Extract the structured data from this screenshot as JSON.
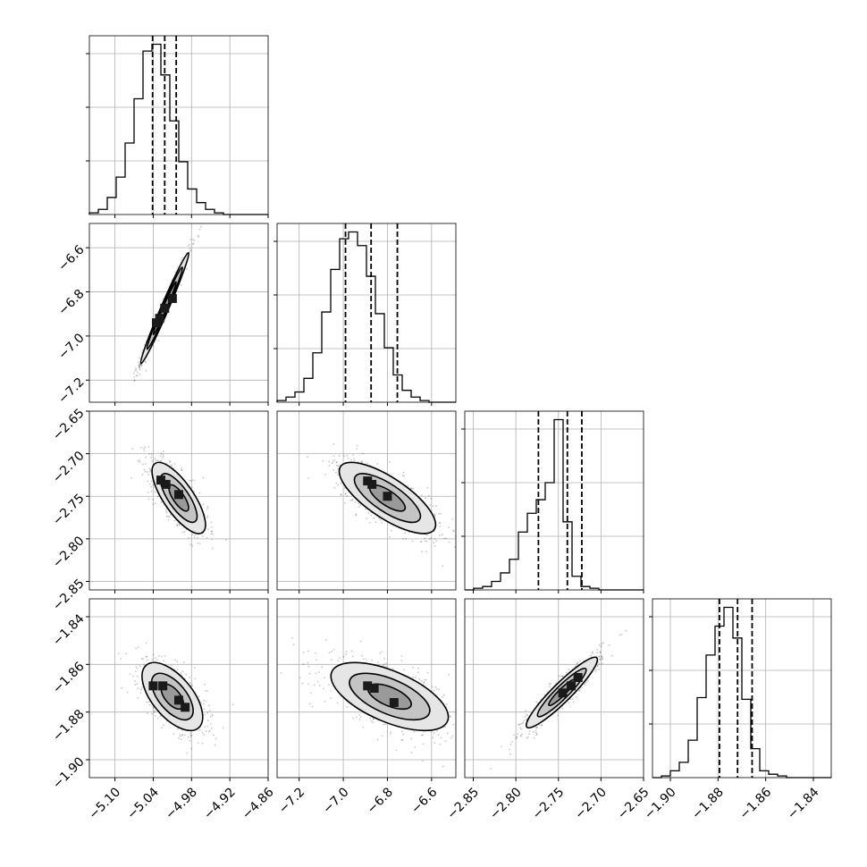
{
  "chart_data": {
    "type": "corner",
    "title": "",
    "parameters": [
      {
        "label": "",
        "range": [
          -5.14,
          -4.86
        ],
        "ticks": [
          {
            "v": -5.1,
            "t": "−5.10"
          },
          {
            "v": -5.04,
            "t": "−5.04"
          },
          {
            "v": -4.98,
            "t": "−4.98"
          },
          {
            "v": -4.92,
            "t": "−4.92"
          },
          {
            "v": -4.86,
            "t": "−4.86"
          }
        ],
        "quantiles": [
          -5.041,
          -5.022,
          -5.004
        ],
        "histogram": {
          "start": -5.14,
          "bin_width": 0.014,
          "counts": [
            1,
            3,
            10,
            22,
            42,
            68,
            96,
            100,
            82,
            55,
            31,
            15,
            7,
            3,
            1,
            0,
            0,
            0,
            0,
            0
          ]
        }
      },
      {
        "label": "",
        "range": [
          -7.3,
          -6.49
        ],
        "ticks": [
          {
            "v": -7.2,
            "t": "−7.2"
          },
          {
            "v": -7.0,
            "t": "−7.0"
          },
          {
            "v": -6.8,
            "t": "−6.8"
          },
          {
            "v": -6.6,
            "t": "−6.6"
          }
        ],
        "quantiles": [
          -6.99,
          -6.874,
          -6.755
        ],
        "histogram": {
          "start": -7.3,
          "bin_width": 0.0405,
          "counts": [
            1,
            3,
            6,
            14,
            29,
            53,
            78,
            96,
            100,
            92,
            74,
            52,
            32,
            16,
            7,
            3,
            1,
            0,
            0,
            0
          ]
        }
      },
      {
        "label": "",
        "range": [
          -2.86,
          -2.65
        ],
        "ticks": [
          {
            "v": -2.85,
            "t": "−2.85"
          },
          {
            "v": -2.8,
            "t": "−2.80"
          },
          {
            "v": -2.75,
            "t": "−2.75"
          },
          {
            "v": -2.7,
            "t": "−2.70"
          },
          {
            "v": -2.65,
            "t": "−2.65"
          }
        ],
        "quantiles": [
          -2.7735,
          -2.7395,
          -2.7225
        ],
        "histogram": {
          "start": -2.86,
          "bin_width": 0.0105,
          "counts": [
            0,
            1,
            2,
            5,
            10,
            18,
            34,
            45,
            53,
            63,
            100,
            40,
            8,
            2,
            1,
            0,
            0,
            0,
            0,
            0
          ]
        }
      },
      {
        "label": "",
        "range": [
          -1.9075,
          -1.8325
        ],
        "ticks": [
          {
            "v": -1.9,
            "t": "−1.90"
          },
          {
            "v": -1.88,
            "t": "−1.88"
          },
          {
            "v": -1.86,
            "t": "−1.86"
          },
          {
            "v": -1.84,
            "t": "−1.84"
          }
        ],
        "quantiles": [
          -1.8794,
          -1.8718,
          -1.8657
        ],
        "histogram": {
          "start": -1.9075,
          "bin_width": 0.00375,
          "counts": [
            0,
            1,
            4,
            9,
            22,
            47,
            72,
            89,
            100,
            82,
            46,
            17,
            4,
            2,
            1,
            0,
            0,
            0,
            0,
            0
          ]
        }
      }
    ],
    "pairs": [
      {
        "row": 1,
        "col": 0,
        "center": [
          -5.022,
          -6.874
        ],
        "sigma": [
          0.018,
          0.12
        ],
        "rho": 0.985,
        "level_scales": [
          1.0,
          1.55,
          2.1
        ],
        "hotspots": [
          [
            -5.03,
            -6.92
          ],
          [
            -5.022,
            -6.874
          ],
          [
            -5.01,
            -6.83
          ],
          [
            -5.035,
            -6.94
          ]
        ]
      },
      {
        "row": 2,
        "col": 0,
        "center": [
          -5.0,
          -2.752
        ],
        "sigma": [
          0.022,
          0.022
        ],
        "rho": -0.75,
        "level_scales": [
          0.7,
          1.3,
          1.9
        ],
        "hotspots": [
          [
            -5.028,
            -2.731
          ],
          [
            -5.02,
            -2.736
          ],
          [
            -5.0,
            -2.748
          ]
        ]
      },
      {
        "row": 2,
        "col": 1,
        "center": [
          -6.8,
          -2.752
        ],
        "sigma": [
          0.115,
          0.022
        ],
        "rho": -0.75,
        "level_scales": [
          0.7,
          1.3,
          1.9
        ],
        "hotspots": [
          [
            -6.89,
            -2.732
          ],
          [
            -6.87,
            -2.736
          ],
          [
            -6.8,
            -2.75
          ]
        ]
      },
      {
        "row": 2,
        "col": 3,
        "center": [
          0,
          0
        ],
        "sigma": [
          0,
          0
        ],
        "rho": 0,
        "level_scales": [],
        "hotspots": []
      },
      {
        "row": 3,
        "col": 0,
        "center": [
          -5.01,
          -1.8735
        ],
        "sigma": [
          0.025,
          0.0075
        ],
        "rho": -0.6,
        "level_scales": [
          0.7,
          1.3,
          1.9
        ],
        "hotspots": [
          [
            -5.04,
            -1.869
          ],
          [
            -5.025,
            -1.869
          ],
          [
            -5.0,
            -1.875
          ],
          [
            -4.99,
            -1.878
          ]
        ]
      },
      {
        "row": 3,
        "col": 1,
        "center": [
          -6.79,
          -1.8735
        ],
        "sigma": [
          0.14,
          0.0075
        ],
        "rho": -0.6,
        "level_scales": [
          0.7,
          1.3,
          1.9
        ],
        "hotspots": [
          [
            -6.89,
            -1.869
          ],
          [
            -6.86,
            -1.87
          ],
          [
            -6.77,
            -1.876
          ]
        ]
      },
      {
        "row": 3,
        "col": 2,
        "center": [
          -2.746,
          -1.8718
        ],
        "sigma": [
          0.022,
          0.0078
        ],
        "rho": 0.93,
        "level_scales": [
          0.7,
          1.3,
          1.9
        ],
        "hotspots": [
          [
            -2.727,
            -1.8655
          ],
          [
            -2.735,
            -1.869
          ],
          [
            -2.745,
            -1.872
          ]
        ]
      }
    ],
    "grid": true,
    "legend": "none"
  }
}
